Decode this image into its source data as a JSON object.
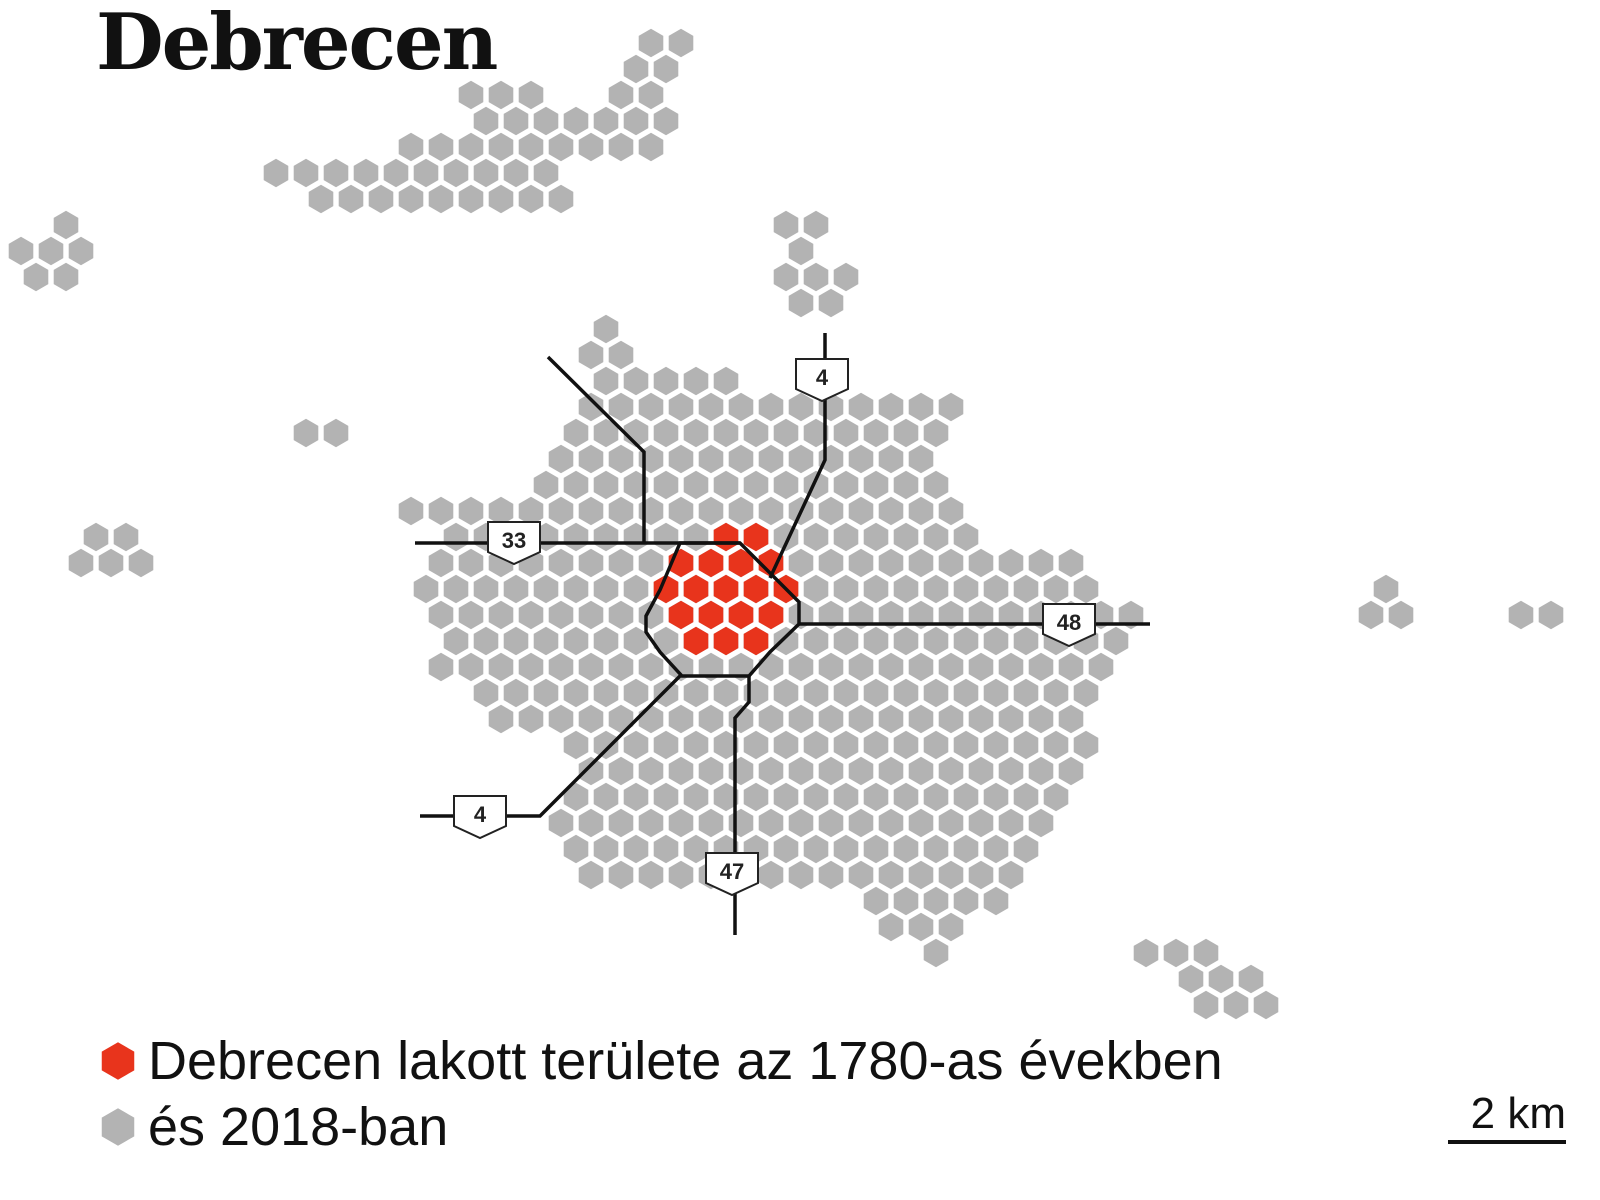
{
  "title": "Debrecen",
  "legend": [
    {
      "label": "Debrecen lakott területe az 1780-as években",
      "color": "#e8341c"
    },
    {
      "label": "és 2018-ban",
      "color": "#b3b3b3"
    }
  ],
  "scale": {
    "label": "2 km"
  },
  "roads": [
    "4",
    "33",
    "48",
    "4",
    "47"
  ],
  "colors": {
    "historic": "#e8341c",
    "modern": "#b3b3b3",
    "road": "#111111"
  }
}
